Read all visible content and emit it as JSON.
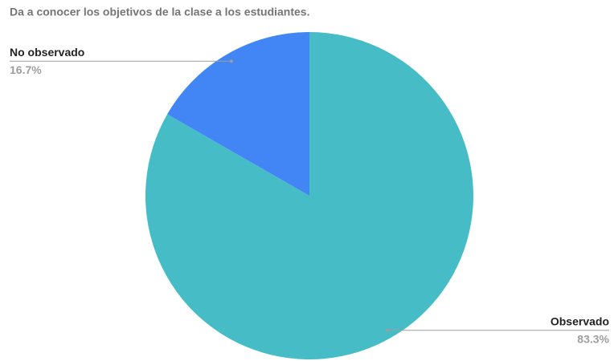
{
  "chart_data": {
    "type": "pie",
    "title": "Da a conocer los objetivos de la clase a los estudiantes.",
    "categories": [
      "Observado",
      "No observado"
    ],
    "values": [
      83.3,
      16.7
    ],
    "value_labels": [
      "83.3%",
      "16.7%"
    ],
    "colors": [
      "#46bdc6",
      "#4285f4"
    ]
  }
}
